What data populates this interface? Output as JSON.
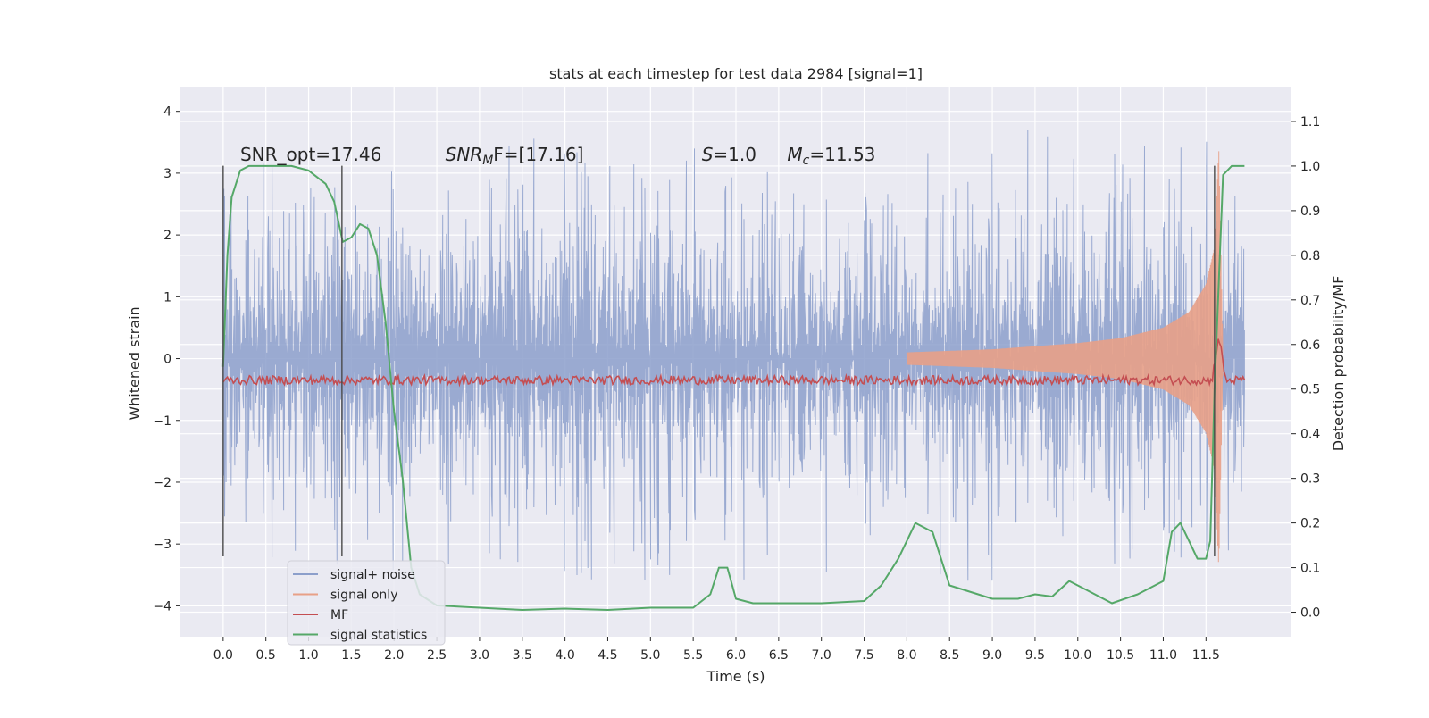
{
  "chart_data": {
    "type": "line",
    "title": "stats at each timestep for test data 2984 [signal=1]",
    "xlabel": "Time (s)",
    "ylabel_left": "Whitened strain",
    "ylabel_right": "Detection probability/MF",
    "xlim": [
      -0.5,
      12.5
    ],
    "ylim_left": [
      -4.5,
      4.4
    ],
    "ylim_right": [
      -0.055,
      1.178
    ],
    "x_ticks": [
      "0.0",
      "0.5",
      "1.0",
      "1.5",
      "2.0",
      "2.5",
      "3.0",
      "3.5",
      "4.0",
      "4.5",
      "5.0",
      "5.5",
      "6.0",
      "6.5",
      "7.0",
      "7.5",
      "8.0",
      "8.5",
      "9.0",
      "9.5",
      "10.0",
      "10.5",
      "11.0",
      "11.5"
    ],
    "y_ticks_left": [
      "4",
      "3",
      "2",
      "1",
      "0",
      "−1",
      "−2",
      "−3",
      "−4"
    ],
    "y_ticks_right": [
      "1.1",
      "1.0",
      "0.9",
      "0.8",
      "0.7",
      "0.6",
      "0.5",
      "0.4",
      "0.3",
      "0.2",
      "0.1",
      "0.0"
    ],
    "grid": true,
    "legend_position": "bottom-left",
    "annotations": {
      "snr_opt": "SNR_opt=17.46",
      "snr_mf_var": "SNR",
      "snr_mf_sub": "M",
      "snr_mf_rest": "F=[17.16]",
      "s_var": "S",
      "s_rest": "=1.0",
      "mc_var": "M",
      "mc_sub": "c",
      "mc_rest": "=11.53"
    },
    "vertical_markers_x": [
      0.0,
      1.39,
      11.6
    ],
    "series": [
      {
        "name": "signal+ noise",
        "color": "#8c9fcb",
        "axis": "left",
        "description_envelope": {
          "x": [
            0.0,
            11.95
          ],
          "typical_amplitude": 1.3,
          "peak_max": 4.0,
          "peak_min": -4.1
        }
      },
      {
        "name": "signal only",
        "color": "#e8a087",
        "axis": "left",
        "envelope_x": [
          8.0,
          9.0,
          10.0,
          10.5,
          11.0,
          11.3,
          11.5,
          11.6,
          11.65,
          11.7
        ],
        "envelope_amp": [
          0.1,
          0.15,
          0.25,
          0.33,
          0.5,
          0.75,
          1.2,
          1.8,
          3.4,
          0.0
        ]
      },
      {
        "name": "MF",
        "color": "#c44e52",
        "axis": "right",
        "baseline": 0.52,
        "peak_x": 11.65,
        "peak_value": 0.62
      },
      {
        "name": "signal statistics",
        "color": "#55a868",
        "axis": "right",
        "x": [
          0.0,
          0.05,
          0.1,
          0.2,
          0.3,
          0.5,
          0.8,
          1.0,
          1.2,
          1.3,
          1.4,
          1.5,
          1.6,
          1.7,
          1.8,
          1.9,
          2.0,
          2.1,
          2.2,
          2.3,
          2.5,
          3.0,
          3.5,
          4.0,
          4.5,
          5.0,
          5.5,
          5.7,
          5.8,
          5.9,
          6.0,
          6.2,
          6.5,
          7.0,
          7.5,
          7.7,
          7.9,
          8.1,
          8.3,
          8.5,
          9.0,
          9.3,
          9.5,
          9.7,
          9.9,
          10.1,
          10.4,
          10.7,
          11.0,
          11.1,
          11.2,
          11.3,
          11.4,
          11.5,
          11.55,
          11.6,
          11.7,
          11.8,
          11.95
        ],
        "y": [
          0.55,
          0.8,
          0.93,
          0.99,
          1.0,
          1.0,
          1.0,
          0.99,
          0.96,
          0.92,
          0.83,
          0.84,
          0.87,
          0.86,
          0.8,
          0.65,
          0.45,
          0.3,
          0.1,
          0.04,
          0.015,
          0.01,
          0.005,
          0.008,
          0.005,
          0.01,
          0.01,
          0.04,
          0.1,
          0.1,
          0.03,
          0.02,
          0.02,
          0.02,
          0.025,
          0.06,
          0.12,
          0.2,
          0.18,
          0.06,
          0.03,
          0.03,
          0.04,
          0.035,
          0.07,
          0.05,
          0.02,
          0.04,
          0.07,
          0.18,
          0.2,
          0.16,
          0.12,
          0.12,
          0.16,
          0.5,
          0.98,
          1.0,
          1.0
        ]
      }
    ]
  }
}
